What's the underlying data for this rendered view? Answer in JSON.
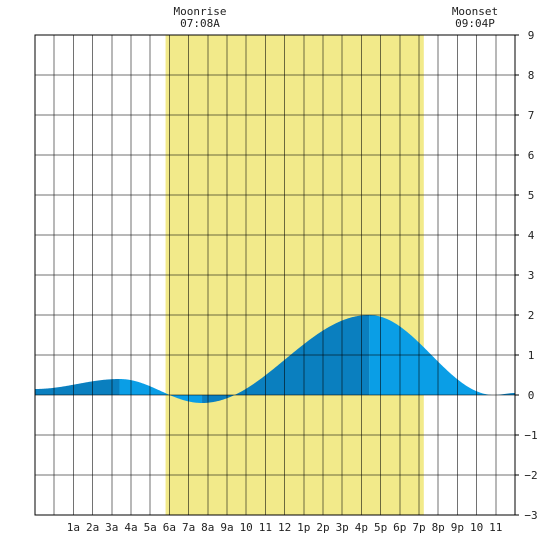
{
  "moonrise": {
    "label": "Moonrise",
    "time": "07:08A"
  },
  "moonset": {
    "label": "Moonset",
    "time": "09:04P"
  },
  "colors": {
    "daylight": "#f2ea8a",
    "tide_light": "#0a9ee6",
    "tide_dark": "#0a7fbf",
    "grid": "#000000",
    "background": "#ffffff"
  },
  "chart_data": {
    "type": "area",
    "title": "",
    "xlabel": "",
    "ylabel": "",
    "x_range_hours": [
      -1,
      24
    ],
    "ylim": [
      -3,
      9
    ],
    "x_tick_labels": [
      "1a",
      "2a",
      "3a",
      "4a",
      "5a",
      "6a",
      "7a",
      "8a",
      "9a",
      "10",
      "11",
      "12",
      "1p",
      "2p",
      "3p",
      "4p",
      "5p",
      "6p",
      "7p",
      "8p",
      "9p",
      "10",
      "11"
    ],
    "y_ticks": [
      -3,
      -2,
      -1,
      0,
      1,
      2,
      3,
      4,
      5,
      6,
      7,
      8,
      9
    ],
    "daylight_hours": [
      5.8,
      19.25
    ],
    "tide": {
      "high_low": [
        {
          "type": "high",
          "hour": 3.4,
          "height": 0.4
        },
        {
          "type": "low",
          "hour": 7.7,
          "height": -0.2
        },
        {
          "type": "high",
          "hour": 16.4,
          "height": 2.0
        },
        {
          "type": "low",
          "hour": 22.9,
          "height": 0.0
        }
      ],
      "start": {
        "hour": -1,
        "height": 0.15
      },
      "end": {
        "hour": 24,
        "height": 0.05
      }
    }
  }
}
